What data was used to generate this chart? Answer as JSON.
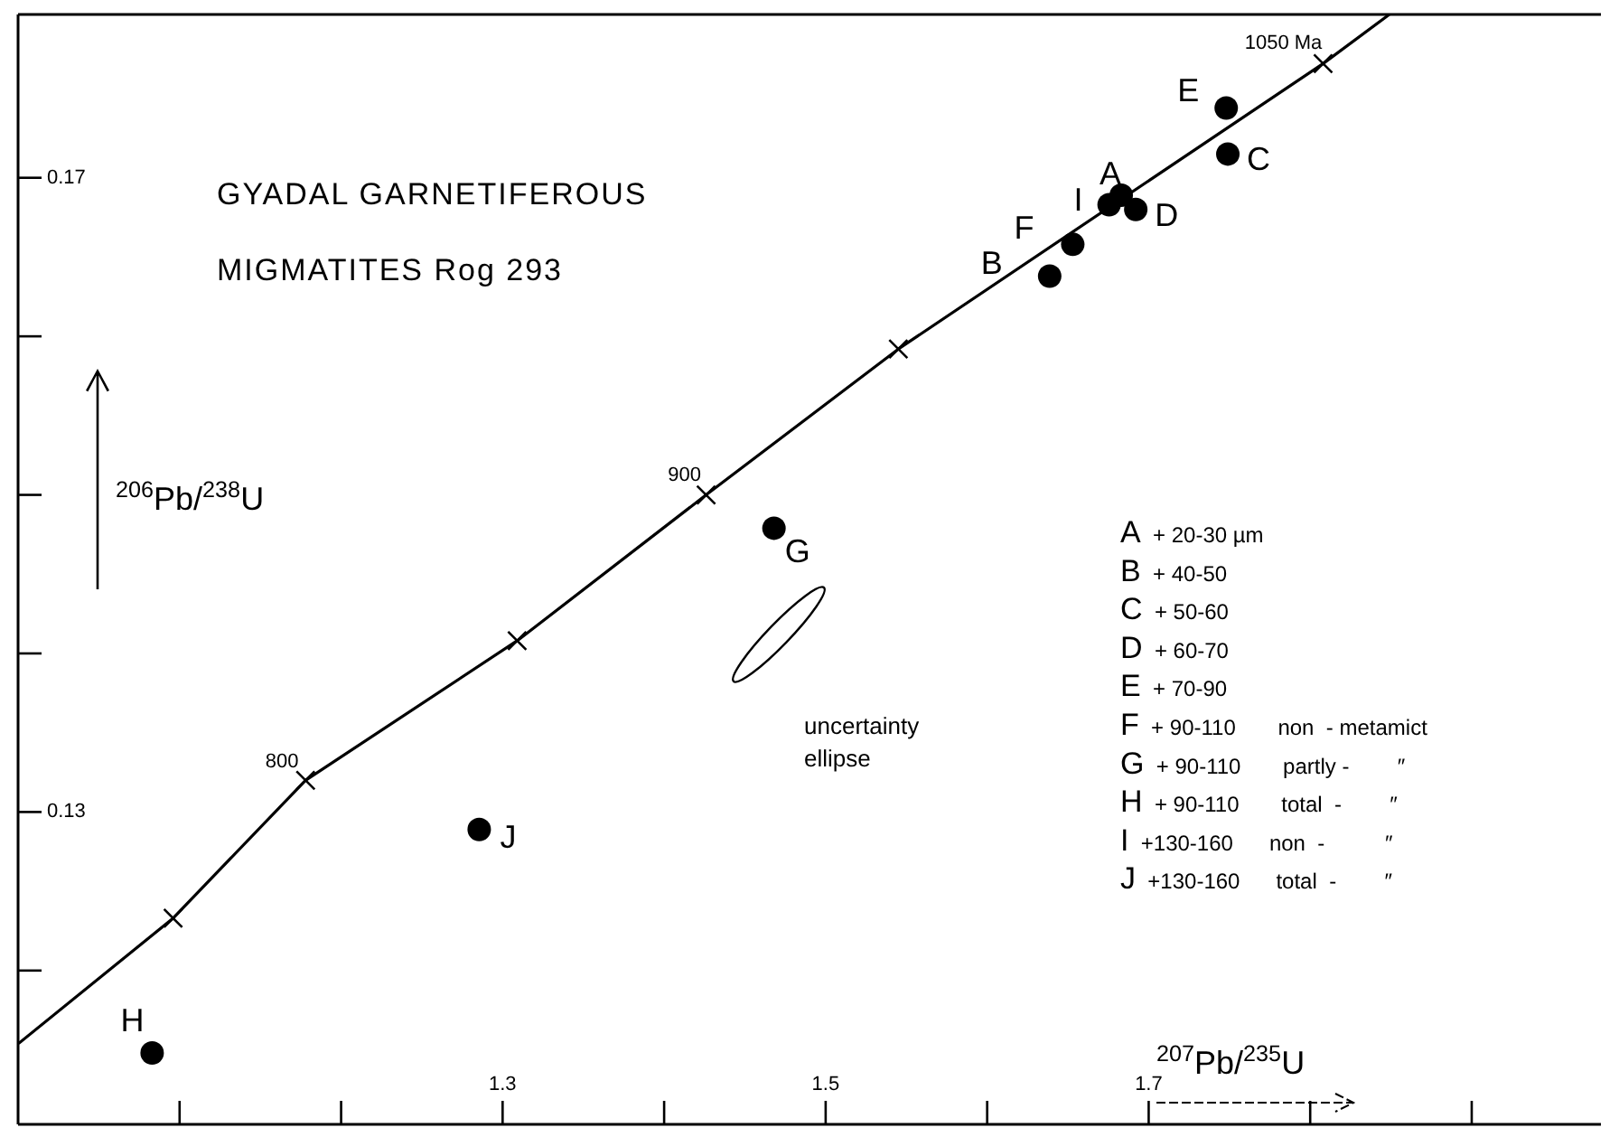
{
  "chart_data": {
    "type": "scatter",
    "title": "GYADAL  GARNETIFEROUS",
    "subtitle": "MIGMATITES   Rog 293",
    "xlabel": "$^{207}$Pb/$^{235}$U",
    "ylabel": "$^{206}$Pb/$^{238}$U",
    "xlim": [
      1.0,
      1.98
    ],
    "ylim": [
      0.1103,
      0.1803
    ],
    "xticks": [
      {
        "value": 1.1,
        "label": null
      },
      {
        "value": 1.2,
        "label": null
      },
      1.3,
      {
        "value": 1.4,
        "label": null
      },
      1.5,
      {
        "value": 1.6,
        "label": null
      },
      1.7,
      {
        "value": 1.8,
        "label": null
      },
      {
        "value": 1.9,
        "label": null
      }
    ],
    "yticks": [
      {
        "value": 0.12,
        "label": null
      },
      0.13,
      {
        "value": 0.14,
        "label": null
      },
      {
        "value": 0.15,
        "label": null
      },
      {
        "value": 0.16,
        "label": null
      },
      0.17
    ],
    "grid": false,
    "marker": "circle",
    "series": [
      {
        "type": "line",
        "color": "#000000",
        "marker": "none",
        "x": [
          1.0003,
          1.096,
          1.178,
          1.309,
          1.426,
          1.545,
          1.808,
          1.849
        ],
        "values": [
          0.1154,
          0.1233,
          0.132,
          0.1408,
          0.15,
          0.1592,
          0.1772,
          0.1803
        ]
      },
      {
        "type": "scatter",
        "color": "#000000",
        "marker": "cross",
        "x": [
          1.096,
          1.178,
          1.309,
          1.426,
          1.545,
          1.808
        ],
        "values": [
          0.1233,
          0.132,
          0.1408,
          0.15,
          0.1592,
          0.1772
        ]
      },
      {
        "color": "#000000",
        "x": [
          1.683,
          1.6387,
          1.749,
          1.692,
          1.748,
          1.653,
          1.468,
          1.083,
          1.6755,
          1.2855
        ],
        "values": [
          0.1689,
          0.1638,
          0.1715,
          0.168,
          0.1744,
          0.1658,
          0.1479,
          0.1148,
          0.1683,
          0.1289
        ]
      }
    ],
    "annotations": [
      {
        "text": "A",
        "x": 1.683,
        "y": 0.1689
      },
      {
        "text": "B",
        "x": 1.6387,
        "y": 0.1638
      },
      {
        "text": "C",
        "x": 1.749,
        "y": 0.1715
      },
      {
        "text": "D",
        "x": 1.692,
        "y": 0.168
      },
      {
        "text": "E",
        "x": 1.748,
        "y": 0.1744
      },
      {
        "text": "F",
        "x": 1.653,
        "y": 0.1658
      },
      {
        "text": "G",
        "x": 1.468,
        "y": 0.1479
      },
      {
        "text": "H",
        "x": 1.083,
        "y": 0.1148
      },
      {
        "text": "I",
        "x": 1.6755,
        "y": 0.1683
      },
      {
        "text": "J",
        "x": 1.2855,
        "y": 0.1289
      },
      {
        "text": "800",
        "x": 1.178,
        "y": 0.132
      },
      {
        "text": "900",
        "x": 1.426,
        "y": 0.15
      },
      {
        "text": "1050 Ma",
        "x": 1.808,
        "y": 0.1772
      },
      "uncertainty",
      "ellipse",
      "A  + 20-30 µm",
      "B  + 40-50",
      "C  + 50-60",
      "D  + 60-70",
      "E  + 70-90",
      "F  + 90-110       non  - metamict",
      "G  + 90-110       partly -        ″",
      "H  + 90-110       total  -        ″",
      "I  +130-160      non  -          ″",
      "J  +130-160      total  -        ″"
    ]
  }
}
